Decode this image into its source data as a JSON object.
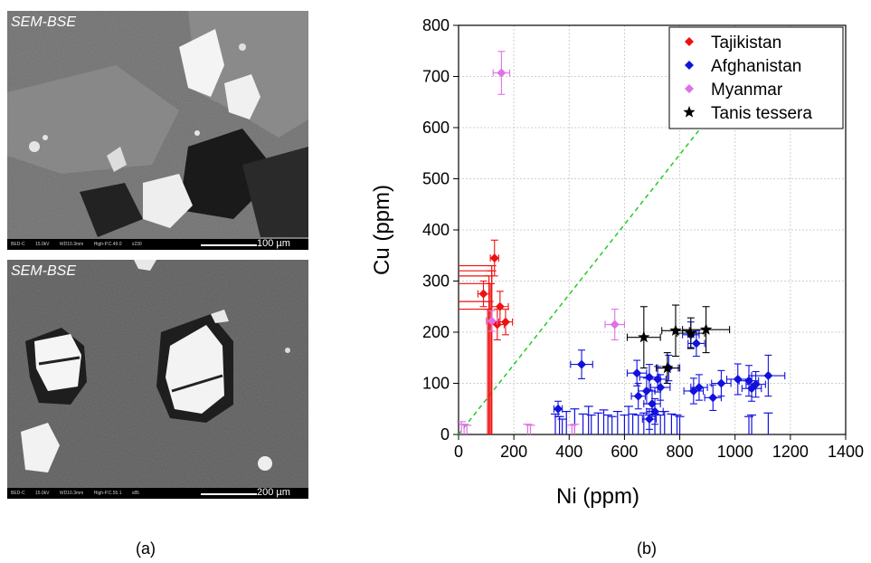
{
  "panels": {
    "a_label": "(a)",
    "b_label": "(b)"
  },
  "sem_images": [
    {
      "tag": "SEM-BSE",
      "footer": [
        "BED-C",
        "15.0kV",
        "WD10.3mm",
        "High-P.C.49.0",
        "x230"
      ],
      "scale_label": "100 µm"
    },
    {
      "tag": "SEM-BSE",
      "footer": [
        "BED-C",
        "15.0kV",
        "WD10.3mm",
        "High-P.C.55.1",
        "x85"
      ],
      "scale_label": "200 µm"
    }
  ],
  "chart_data": {
    "type": "scatter",
    "xlabel": "Ni (ppm)",
    "ylabel": "Cu (ppm)",
    "xlim": [
      0,
      1400
    ],
    "ylim": [
      0,
      800
    ],
    "xticks": [
      0,
      200,
      400,
      600,
      800,
      1000,
      1200,
      1400
    ],
    "yticks": [
      0,
      100,
      200,
      300,
      400,
      500,
      600,
      700,
      800
    ],
    "grid": true,
    "legend": "top-right",
    "reference_line": {
      "style": "dashed",
      "color": "#22cc22",
      "from": [
        0,
        0
      ],
      "to": [
        950,
        650
      ]
    },
    "series": [
      {
        "name": "Tajikistan",
        "color": "#ee1111",
        "marker": "diamond",
        "points": [
          {
            "x": 130,
            "y": 345,
            "ex": 15,
            "ey": 35
          },
          {
            "x": 90,
            "y": 275,
            "ex": 20,
            "ey": 25
          },
          {
            "x": 150,
            "y": 250,
            "ex": 30,
            "ey": 30
          },
          {
            "x": 140,
            "y": 215,
            "ex": 25,
            "ey": 30
          },
          {
            "x": 170,
            "y": 220,
            "ex": 25,
            "ey": 25
          }
        ],
        "upper_limits": [
          {
            "x": 120,
            "y": 330
          },
          {
            "x": 120,
            "y": 320
          },
          {
            "x": 110,
            "y": 310
          },
          {
            "x": 115,
            "y": 295
          },
          {
            "x": 110,
            "y": 260
          },
          {
            "x": 105,
            "y": 245
          }
        ]
      },
      {
        "name": "Afghanistan",
        "color": "#1111dd",
        "marker": "diamond",
        "points": [
          {
            "x": 445,
            "y": 137,
            "ex": 40,
            "ey": 28
          },
          {
            "x": 840,
            "y": 195,
            "ex": 30,
            "ey": 25
          },
          {
            "x": 860,
            "y": 178,
            "ex": 30,
            "ey": 25
          },
          {
            "x": 645,
            "y": 120,
            "ex": 35,
            "ey": 25
          },
          {
            "x": 690,
            "y": 112,
            "ex": 35,
            "ey": 25
          },
          {
            "x": 720,
            "y": 108,
            "ex": 30,
            "ey": 25
          },
          {
            "x": 760,
            "y": 130,
            "ex": 40,
            "ey": 25
          },
          {
            "x": 680,
            "y": 85,
            "ex": 30,
            "ey": 25
          },
          {
            "x": 650,
            "y": 75,
            "ex": 25,
            "ey": 25
          },
          {
            "x": 700,
            "y": 60,
            "ex": 30,
            "ey": 25
          },
          {
            "x": 730,
            "y": 92,
            "ex": 35,
            "ey": 25
          },
          {
            "x": 710,
            "y": 45,
            "ex": 30,
            "ey": 25
          },
          {
            "x": 690,
            "y": 30,
            "ex": 25,
            "ey": 20
          },
          {
            "x": 850,
            "y": 85,
            "ex": 35,
            "ey": 25
          },
          {
            "x": 870,
            "y": 92,
            "ex": 30,
            "ey": 25
          },
          {
            "x": 920,
            "y": 72,
            "ex": 30,
            "ey": 25
          },
          {
            "x": 950,
            "y": 100,
            "ex": 35,
            "ey": 25
          },
          {
            "x": 1010,
            "y": 108,
            "ex": 40,
            "ey": 30
          },
          {
            "x": 1050,
            "y": 105,
            "ex": 35,
            "ey": 30
          },
          {
            "x": 1060,
            "y": 90,
            "ex": 35,
            "ey": 25
          },
          {
            "x": 1075,
            "y": 98,
            "ex": 35,
            "ey": 25
          },
          {
            "x": 1120,
            "y": 115,
            "ex": 60,
            "ey": 40
          },
          {
            "x": 360,
            "y": 50,
            "ex": 15,
            "ey": 15
          }
        ],
        "upper_limits": [
          {
            "x": 350,
            "y": 40
          },
          {
            "x": 365,
            "y": 35
          },
          {
            "x": 375,
            "y": 30
          },
          {
            "x": 390,
            "y": 45
          },
          {
            "x": 420,
            "y": 50
          },
          {
            "x": 450,
            "y": 40
          },
          {
            "x": 470,
            "y": 55
          },
          {
            "x": 480,
            "y": 38
          },
          {
            "x": 505,
            "y": 42
          },
          {
            "x": 525,
            "y": 48
          },
          {
            "x": 540,
            "y": 38
          },
          {
            "x": 555,
            "y": 35
          },
          {
            "x": 575,
            "y": 45
          },
          {
            "x": 600,
            "y": 38
          },
          {
            "x": 615,
            "y": 55
          },
          {
            "x": 630,
            "y": 40
          },
          {
            "x": 650,
            "y": 38
          },
          {
            "x": 670,
            "y": 42
          },
          {
            "x": 690,
            "y": 38
          },
          {
            "x": 710,
            "y": 40
          },
          {
            "x": 730,
            "y": 38
          },
          {
            "x": 745,
            "y": 45
          },
          {
            "x": 770,
            "y": 40
          },
          {
            "x": 790,
            "y": 38
          },
          {
            "x": 800,
            "y": 35
          },
          {
            "x": 1050,
            "y": 35
          },
          {
            "x": 1060,
            "y": 38
          },
          {
            "x": 1120,
            "y": 42
          }
        ]
      },
      {
        "name": "Myanmar",
        "color": "#e070e8",
        "marker": "diamond",
        "points": [
          {
            "x": 155,
            "y": 707,
            "ex": 30,
            "ey": 42
          },
          {
            "x": 565,
            "y": 215,
            "ex": 35,
            "ey": 30
          },
          {
            "x": 120,
            "y": 222,
            "ex": 20,
            "ey": 20
          }
        ],
        "upper_limits": [
          {
            "x": 10,
            "y": 25
          },
          {
            "x": 20,
            "y": 20
          },
          {
            "x": 30,
            "y": 18
          },
          {
            "x": 250,
            "y": 20
          },
          {
            "x": 260,
            "y": 18
          },
          {
            "x": 410,
            "y": 18
          },
          {
            "x": 420,
            "y": 20
          }
        ]
      },
      {
        "name": "Tanis tessera",
        "color": "#000000",
        "marker": "star",
        "points": [
          {
            "x": 670,
            "y": 190,
            "ex": 60,
            "ey": 60
          },
          {
            "x": 755,
            "y": 130,
            "ex": 40,
            "ey": 30
          },
          {
            "x": 785,
            "y": 203,
            "ex": 50,
            "ey": 50
          },
          {
            "x": 840,
            "y": 198,
            "ex": 50,
            "ey": 30
          },
          {
            "x": 895,
            "y": 205,
            "ex": 85,
            "ey": 45
          }
        ],
        "upper_limits": []
      }
    ]
  }
}
